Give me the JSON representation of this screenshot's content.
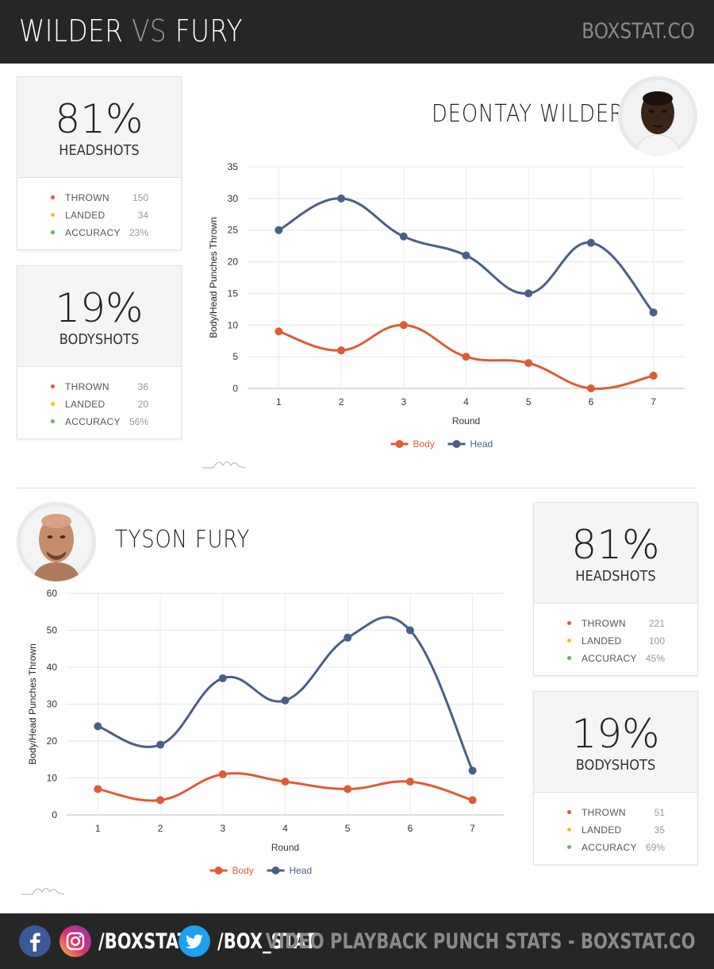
{
  "header": {
    "title_left": "WILDER",
    "title_vs": "VS",
    "title_right": "FURY",
    "site": "BOXSTAT.CO"
  },
  "colors": {
    "body": "#e05a37",
    "head": "#4a5f86",
    "thrown_dot": "#e05a37",
    "landed_dot": "#f4c21b",
    "accuracy_dot": "#5cb85c"
  },
  "wilder": {
    "name": "DEONTAY WILDER",
    "headshots": {
      "percent": "81%",
      "label": "HEADSHOTS",
      "thrown_label": "THROWN",
      "thrown": "150",
      "landed_label": "LANDED",
      "landed": "34",
      "accuracy_label": "ACCURACY",
      "accuracy": "23%"
    },
    "bodyshots": {
      "percent": "19%",
      "label": "BODYSHOTS",
      "thrown_label": "THROWN",
      "thrown": "36",
      "landed_label": "LANDED",
      "landed": "20",
      "accuracy_label": "ACCURACY",
      "accuracy": "56%"
    }
  },
  "fury": {
    "name": "TYSON FURY",
    "headshots": {
      "percent": "81%",
      "label": "HEADSHOTS",
      "thrown_label": "THROWN",
      "thrown": "221",
      "landed_label": "LANDED",
      "landed": "100",
      "accuracy_label": "ACCURACY",
      "accuracy": "45%"
    },
    "bodyshots": {
      "percent": "19%",
      "label": "BODYSHOTS",
      "thrown_label": "THROWN",
      "thrown": "51",
      "landed_label": "LANDED",
      "landed": "35",
      "accuracy_label": "ACCURACY",
      "accuracy": "69%"
    }
  },
  "footer": {
    "handle_1": "/BOXSTAT",
    "handle_2": "/BOX_STAT",
    "tagline": "VIDEO PLAYBACK PUNCH STATS - BOXSTAT.CO",
    "icons": [
      "facebook-icon",
      "instagram-icon",
      "twitter-icon"
    ]
  },
  "chart_data": [
    {
      "type": "line",
      "x": [
        1,
        2,
        3,
        4,
        5,
        6,
        7
      ],
      "series": [
        {
          "name": "Body",
          "values": [
            9,
            6,
            10,
            5,
            4,
            0,
            2
          ]
        },
        {
          "name": "Head",
          "values": [
            25,
            30,
            24,
            21,
            15,
            23,
            12
          ]
        }
      ],
      "xlabel": "Round",
      "ylabel": "Body/Head Punches Thrown",
      "ylim": [
        0,
        35
      ],
      "yticks": [
        0,
        5,
        10,
        15,
        20,
        25,
        30,
        35
      ],
      "grid": true,
      "legend": "bottom"
    },
    {
      "type": "line",
      "x": [
        1,
        2,
        3,
        4,
        5,
        6,
        7
      ],
      "series": [
        {
          "name": "Body",
          "values": [
            7,
            4,
            11,
            9,
            7,
            9,
            4
          ]
        },
        {
          "name": "Head",
          "values": [
            24,
            19,
            37,
            31,
            48,
            50,
            12
          ]
        }
      ],
      "xlabel": "Round",
      "ylabel": "Body/Head Punches Thrown",
      "ylim": [
        0,
        60
      ],
      "yticks": [
        0,
        10,
        20,
        30,
        40,
        50,
        60
      ],
      "grid": true,
      "legend": "bottom"
    }
  ]
}
